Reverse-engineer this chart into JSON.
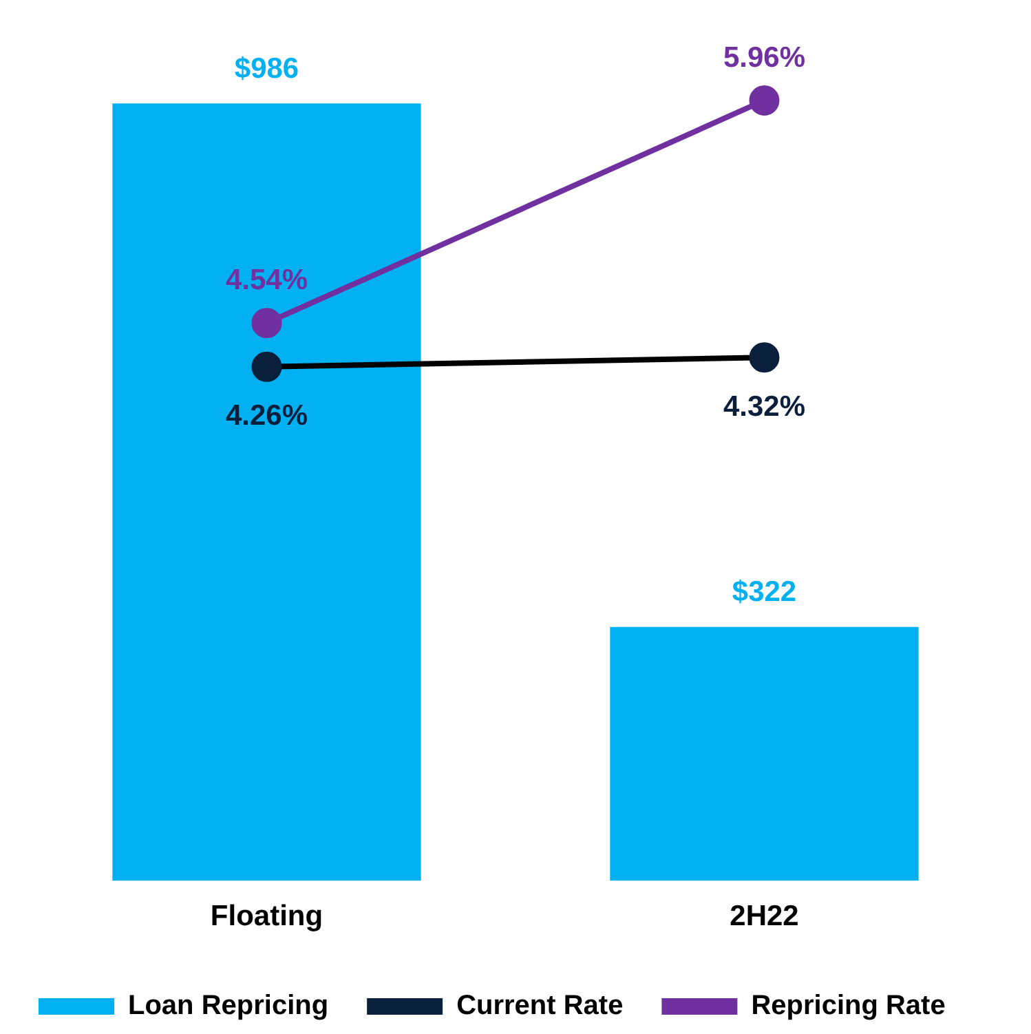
{
  "chart_data": {
    "type": "bar",
    "categories": [
      "Floating",
      "2H22"
    ],
    "series": [
      {
        "name": "Loan Repricing",
        "color": "#00b0f0",
        "values": [
          986,
          322
        ],
        "value_labels": [
          "$986",
          "$322"
        ]
      },
      {
        "name": "Current Rate",
        "type": "line",
        "axis": "y2",
        "color": "#0a1f3c",
        "values": [
          4.26,
          4.32
        ],
        "value_labels": [
          "4.26%",
          "4.32%"
        ]
      },
      {
        "name": "Repricing Rate",
        "type": "line",
        "axis": "y2",
        "color": "#7030a0",
        "values": [
          4.54,
          5.96
        ],
        "value_labels": [
          "4.54%",
          "5.96%"
        ]
      }
    ],
    "tick_labels": "x",
    "data_labels": true,
    "legend": "bottom",
    "marker": "circle",
    "grid": false
  }
}
